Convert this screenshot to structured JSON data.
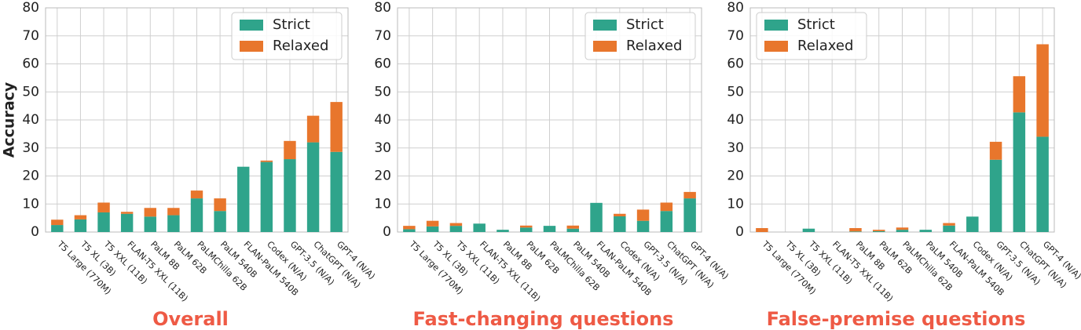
{
  "chart_data": [
    {
      "type": "bar",
      "stacked": true,
      "title": "Overall",
      "ylabel": "Accuracy",
      "categories": [
        "T5 Large (770M)",
        "T5 XL (3B)",
        "T5 XXL (11B)",
        "FLAN-T5 XXL (11B)",
        "PaLM 8B",
        "PaLM 62B",
        "PaLMChilla 62B",
        "PaLM 540B",
        "FLAN-PaLM 540B",
        "Codex (N/A)",
        "GPT-3.5 (N/A)",
        "ChatGPT (N/A)",
        "GPT-4 (N/A)"
      ],
      "series": [
        {
          "name": "Strict",
          "color": "#2fa48b",
          "values": [
            2.5,
            4.5,
            7,
            6.5,
            5.5,
            6,
            12,
            7.5,
            23.3,
            25,
            26,
            32,
            28.6
          ]
        },
        {
          "name": "Relaxed",
          "color": "#e8762c",
          "values": [
            1.9,
            1.5,
            3.5,
            0.7,
            3.1,
            2.6,
            2.8,
            4.5,
            0,
            0.5,
            6.5,
            9.5,
            17.8
          ]
        }
      ],
      "ylim": [
        0,
        80
      ],
      "yticks": [
        0,
        10,
        20,
        30,
        40,
        50,
        60,
        70,
        80
      ],
      "grid": true,
      "legend": "upper right"
    },
    {
      "type": "bar",
      "stacked": true,
      "title": "Fast-changing questions",
      "categories": [
        "T5 Large (770M)",
        "T5 XL (3B)",
        "T5 XXL (11B)",
        "FLAN-T5 XXL (11B)",
        "PaLM 8B",
        "PaLM 62B",
        "PaLMChilla 62B",
        "PaLM 540B",
        "FLAN-PaLM 540B",
        "Codex (N/A)",
        "GPT-3.5 (N/A)",
        "ChatGPT (N/A)",
        "GPT-4 (N/A)"
      ],
      "series": [
        {
          "name": "Strict",
          "color": "#2fa48b",
          "values": [
            1,
            2,
            2.2,
            3,
            0.8,
            1.6,
            2.2,
            1.2,
            10.4,
            5.6,
            4,
            7.5,
            12
          ]
        },
        {
          "name": "Relaxed",
          "color": "#e8762c",
          "values": [
            1.2,
            2,
            1,
            0,
            0,
            0.7,
            0,
            1.1,
            0,
            0.9,
            4,
            3,
            2.3
          ]
        }
      ],
      "ylim": [
        0,
        80
      ],
      "yticks": [
        0,
        10,
        20,
        30,
        40,
        50,
        60,
        70,
        80
      ],
      "grid": true,
      "legend": "upper right"
    },
    {
      "type": "bar",
      "stacked": true,
      "title": "False-premise questions",
      "categories": [
        "T5 Large (770M)",
        "T5 XL (3B)",
        "T5 XXL (11B)",
        "FLAN-T5 XXL (11B)",
        "PaLM 8B",
        "PaLM 62B",
        "PaLMChilla 62B",
        "PaLM 540B",
        "FLAN-PaLM 540B",
        "Codex (N/A)",
        "GPT-3.5 (N/A)",
        "ChatGPT (N/A)",
        "GPT-4 (N/A)"
      ],
      "series": [
        {
          "name": "Strict",
          "color": "#2fa48b",
          "values": [
            0,
            0,
            1.2,
            0,
            0.2,
            0.3,
            0.8,
            0.8,
            2.3,
            5.5,
            25.8,
            42.7,
            34
          ]
        },
        {
          "name": "Relaxed",
          "color": "#e8762c",
          "values": [
            1.4,
            0,
            0,
            0,
            1.2,
            0.5,
            0.8,
            0,
            0.9,
            0,
            6.4,
            12.9,
            33
          ]
        }
      ],
      "ylim": [
        0,
        80
      ],
      "yticks": [
        0,
        10,
        20,
        30,
        40,
        50,
        60,
        70,
        80
      ],
      "grid": true,
      "legend": "upper left"
    }
  ]
}
